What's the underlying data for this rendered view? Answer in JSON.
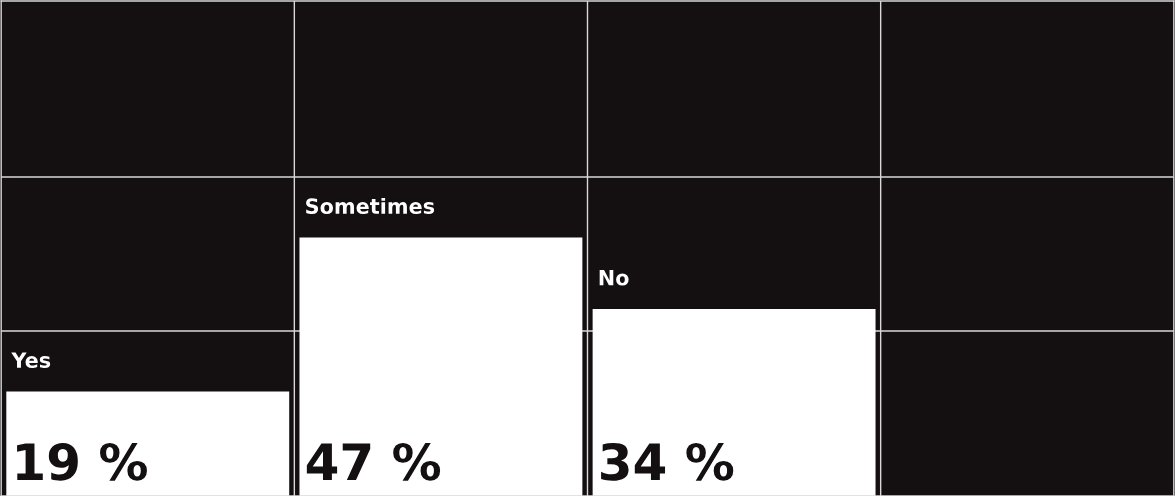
{
  "chart_data": {
    "type": "bar",
    "categories": [
      "Yes",
      "Sometimes",
      "No"
    ],
    "values": [
      19,
      47,
      34
    ],
    "value_labels": [
      "19 %",
      "47 %",
      "34 %"
    ],
    "color": "#ffffff",
    "ylim": [
      0,
      90
    ],
    "yticks": [
      {
        "value": 30,
        "label": null
      },
      {
        "value": 58,
        "label": null
      }
    ],
    "grid": true,
    "legend": false
  }
}
